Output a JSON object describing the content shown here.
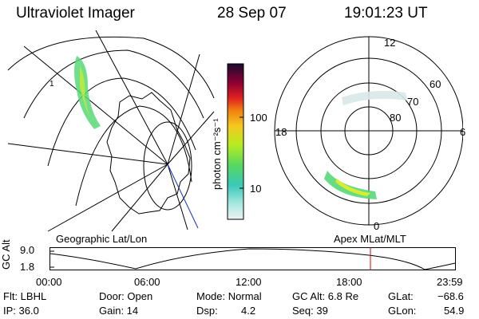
{
  "header": {
    "title": "Ultraviolet Imager",
    "date": "28 Sep 07",
    "time": "19:01:23 UT"
  },
  "geo_panel": {
    "label": "Geographic Lat/Lon"
  },
  "polar_panel": {
    "label": "Apex MLat/MLT",
    "mlt_labels": {
      "top": "12",
      "left": "18",
      "right": "6",
      "bottom": "0"
    },
    "lat_labels": [
      "60",
      "70",
      "80"
    ]
  },
  "colorbar": {
    "unit_label": "photon cm⁻²s⁻¹",
    "ticks": [
      "100",
      "10"
    ],
    "colors": [
      "#1a0a2e",
      "#3a0a4e",
      "#8b0033",
      "#c0001c",
      "#e02020",
      "#f06010",
      "#f59a10",
      "#f5c820",
      "#e8e820",
      "#b8ec20",
      "#78e040",
      "#40d870",
      "#38c8b8",
      "#70e0e0",
      "#a8e8e0",
      "#d8e8e8"
    ]
  },
  "altitude_plot": {
    "ylabel": "GC Alt",
    "yticks": [
      "9.0",
      "1.8"
    ],
    "xticks": [
      "00:00",
      "06:00",
      "12:00",
      "18:00",
      "23:59"
    ],
    "current_time_marker": "19:01"
  },
  "info": {
    "flt": "Flt: LBHL",
    "ip": "IP: 36.0",
    "door": "Door: Open",
    "gain": "Gain: 14",
    "mode": "Mode: Normal",
    "dsp_label": "Dsp:",
    "dsp_value": "4.2",
    "gc_alt": "GC Alt: 6.8 Re",
    "seq": "Seq: 39",
    "glat_label": "GLat:",
    "glat_value": "−68.6",
    "glon_label": "GLon:",
    "glon_value": "54.9"
  }
}
